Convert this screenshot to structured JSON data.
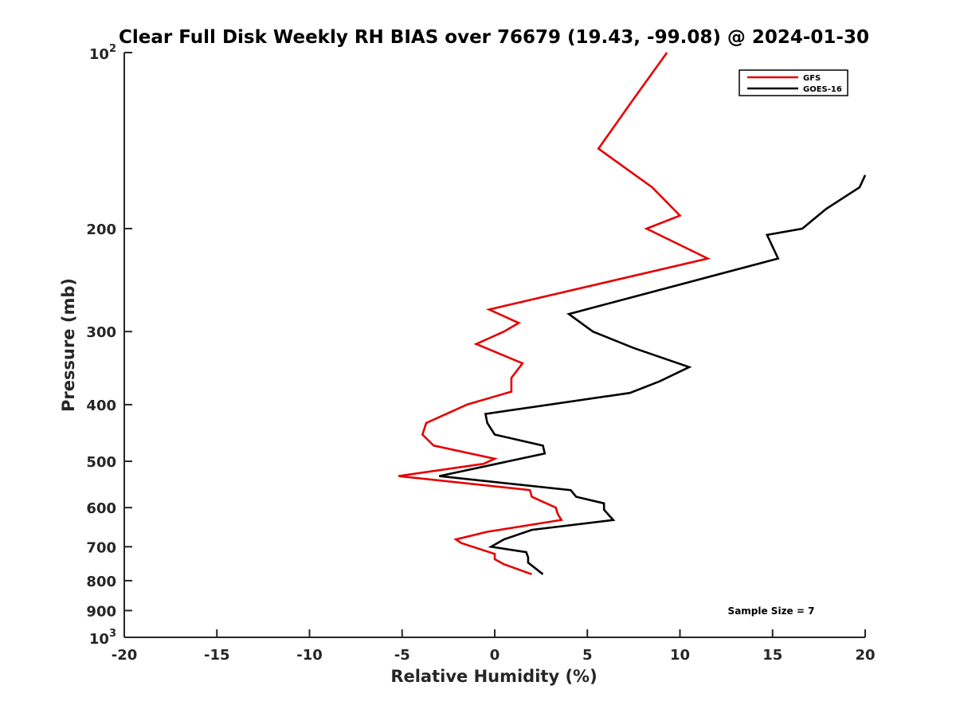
{
  "chart_data": {
    "type": "line",
    "title": "Clear Full Disk Weekly RH BIAS over 76679 (19.43, -99.08) @ 2024-01-30",
    "xlabel": "Relative Humidity (%)",
    "ylabel": "Pressure (mb)",
    "xlim": [
      -20,
      20
    ],
    "ylim": [
      1000,
      100
    ],
    "y_scale": "log",
    "y_reversed": true,
    "grid": false,
    "x_ticks": [
      -20,
      -15,
      -10,
      -5,
      0,
      5,
      10,
      15,
      20
    ],
    "x_tick_labels": [
      "-20",
      "-15",
      "-10",
      "-5",
      "0",
      "5",
      "10",
      "15",
      "20"
    ],
    "y_ticks": [
      200,
      300,
      400,
      500,
      600,
      700,
      800,
      900
    ],
    "y_tick_labels": [
      "200",
      "300",
      "400",
      "500",
      "600",
      "700",
      "800",
      "900"
    ],
    "y_extreme_ticks": [
      {
        "value": 100,
        "base": "10",
        "exponent": "2"
      },
      {
        "value": 1000,
        "base": "10",
        "exponent": "3"
      }
    ],
    "legend": {
      "placement": "top-right"
    },
    "series": [
      {
        "name": "GFS",
        "color": "#e60000",
        "points": [
          [
            9.3,
            100
          ],
          [
            7.5,
            120
          ],
          [
            5.6,
            146
          ],
          [
            8.5,
            170
          ],
          [
            10.0,
            190
          ],
          [
            8.2,
            200
          ],
          [
            11.5,
            225
          ],
          [
            -0.3,
            275
          ],
          [
            1.3,
            290
          ],
          [
            0.5,
            300
          ],
          [
            -1.0,
            315
          ],
          [
            1.5,
            340
          ],
          [
            0.9,
            360
          ],
          [
            0.9,
            380
          ],
          [
            -1.5,
            400
          ],
          [
            -3.7,
            430
          ],
          [
            -3.9,
            450
          ],
          [
            -3.3,
            470
          ],
          [
            0.0,
            495
          ],
          [
            -0.6,
            505
          ],
          [
            -5.2,
            530
          ],
          [
            1.9,
            560
          ],
          [
            2.0,
            575
          ],
          [
            3.3,
            600
          ],
          [
            3.4,
            615
          ],
          [
            3.6,
            630
          ],
          [
            -0.4,
            660
          ],
          [
            -2.1,
            680
          ],
          [
            -1.8,
            690
          ],
          [
            0.0,
            720
          ],
          [
            0.0,
            735
          ],
          [
            0.5,
            750
          ],
          [
            2.0,
            780
          ]
        ]
      },
      {
        "name": "GOES-16",
        "color": "#000000",
        "points": [
          [
            20.0,
            162
          ],
          [
            19.7,
            170
          ],
          [
            17.9,
            185
          ],
          [
            16.6,
            200
          ],
          [
            14.7,
            205
          ],
          [
            15.3,
            225
          ],
          [
            4.0,
            280
          ],
          [
            5.3,
            300
          ],
          [
            7.5,
            320
          ],
          [
            10.5,
            345
          ],
          [
            8.9,
            365
          ],
          [
            7.3,
            382
          ],
          [
            -0.5,
            415
          ],
          [
            -0.4,
            430
          ],
          [
            0.0,
            450
          ],
          [
            2.6,
            470
          ],
          [
            2.7,
            485
          ],
          [
            -3.0,
            530
          ],
          [
            4.1,
            560
          ],
          [
            4.4,
            575
          ],
          [
            5.9,
            590
          ],
          [
            5.9,
            605
          ],
          [
            6.4,
            630
          ],
          [
            2.0,
            655
          ],
          [
            0.5,
            680
          ],
          [
            -0.2,
            700
          ],
          [
            1.7,
            715
          ],
          [
            1.8,
            730
          ],
          [
            1.8,
            745
          ],
          [
            2.6,
            780
          ]
        ]
      }
    ],
    "annotations": [
      "Sample Size = 7"
    ]
  }
}
